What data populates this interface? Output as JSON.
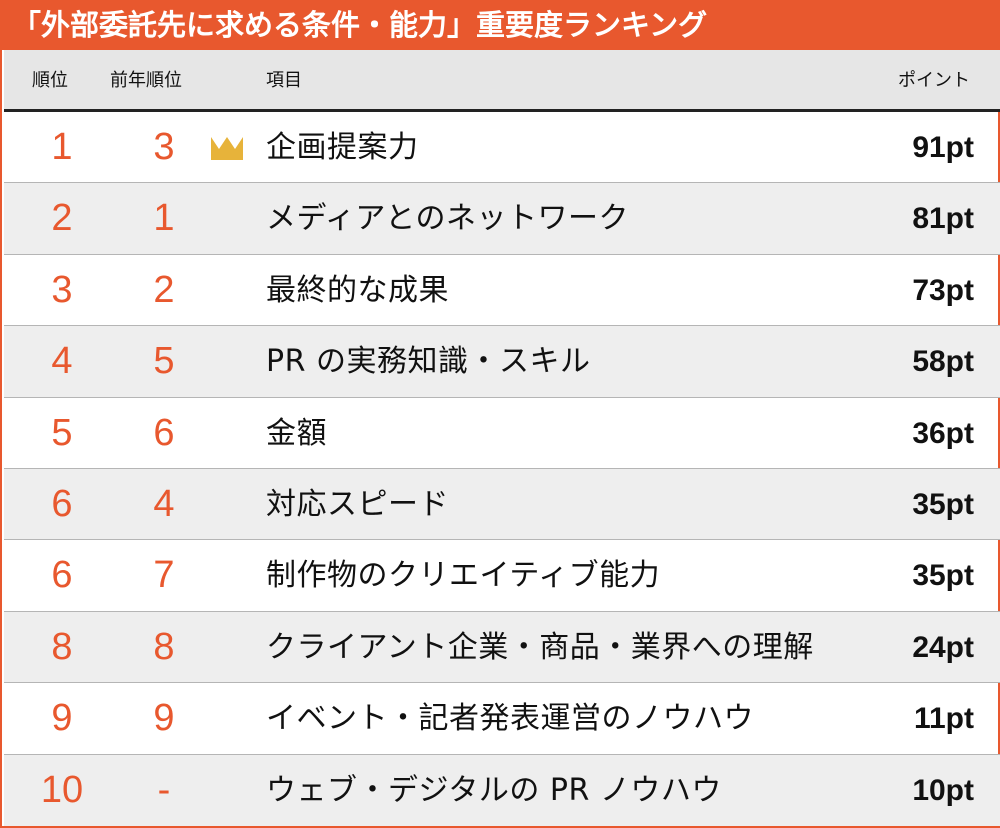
{
  "title": "「外部委託先に求める条件・能力」重要度ランキング",
  "headers": {
    "rank": "順位",
    "prev_rank": "前年順位",
    "item": "項目",
    "points": "ポイント"
  },
  "colors": {
    "accent": "#e8582e",
    "crown": "#e7b33a",
    "row_alt": "#eeeeee",
    "header_bg": "#e6e6e6"
  },
  "icons": {
    "top_item": "crown-icon"
  },
  "chart_data": {
    "type": "table",
    "title": "「外部委託先に求める条件・能力」重要度ランキング",
    "columns": [
      "順位",
      "前年順位",
      "項目",
      "ポイント"
    ],
    "rows": [
      {
        "rank": "1",
        "prev_rank": "3",
        "item": "企画提案力",
        "points": "91pt",
        "value": 91,
        "crown": true
      },
      {
        "rank": "2",
        "prev_rank": "1",
        "item": "メディアとのネットワーク",
        "points": "81pt",
        "value": 81,
        "crown": false
      },
      {
        "rank": "3",
        "prev_rank": "2",
        "item": "最終的な成果",
        "points": "73pt",
        "value": 73,
        "crown": false
      },
      {
        "rank": "4",
        "prev_rank": "5",
        "item": "PR の実務知識・スキル",
        "points": "58pt",
        "value": 58,
        "crown": false
      },
      {
        "rank": "5",
        "prev_rank": "6",
        "item": "金額",
        "points": "36pt",
        "value": 36,
        "crown": false
      },
      {
        "rank": "6",
        "prev_rank": "4",
        "item": "対応スピード",
        "points": "35pt",
        "value": 35,
        "crown": false
      },
      {
        "rank": "6",
        "prev_rank": "7",
        "item": "制作物のクリエイティブ能力",
        "points": "35pt",
        "value": 35,
        "crown": false
      },
      {
        "rank": "8",
        "prev_rank": "8",
        "item": "クライアント企業・商品・業界への理解",
        "points": "24pt",
        "value": 24,
        "crown": false
      },
      {
        "rank": "9",
        "prev_rank": "9",
        "item": "イベント・記者発表運営のノウハウ",
        "points": "11pt",
        "value": 11,
        "crown": false
      },
      {
        "rank": "10",
        "prev_rank": "-",
        "item": "ウェブ・デジタルの PR ノウハウ",
        "points": "10pt",
        "value": 10,
        "crown": false
      }
    ]
  }
}
